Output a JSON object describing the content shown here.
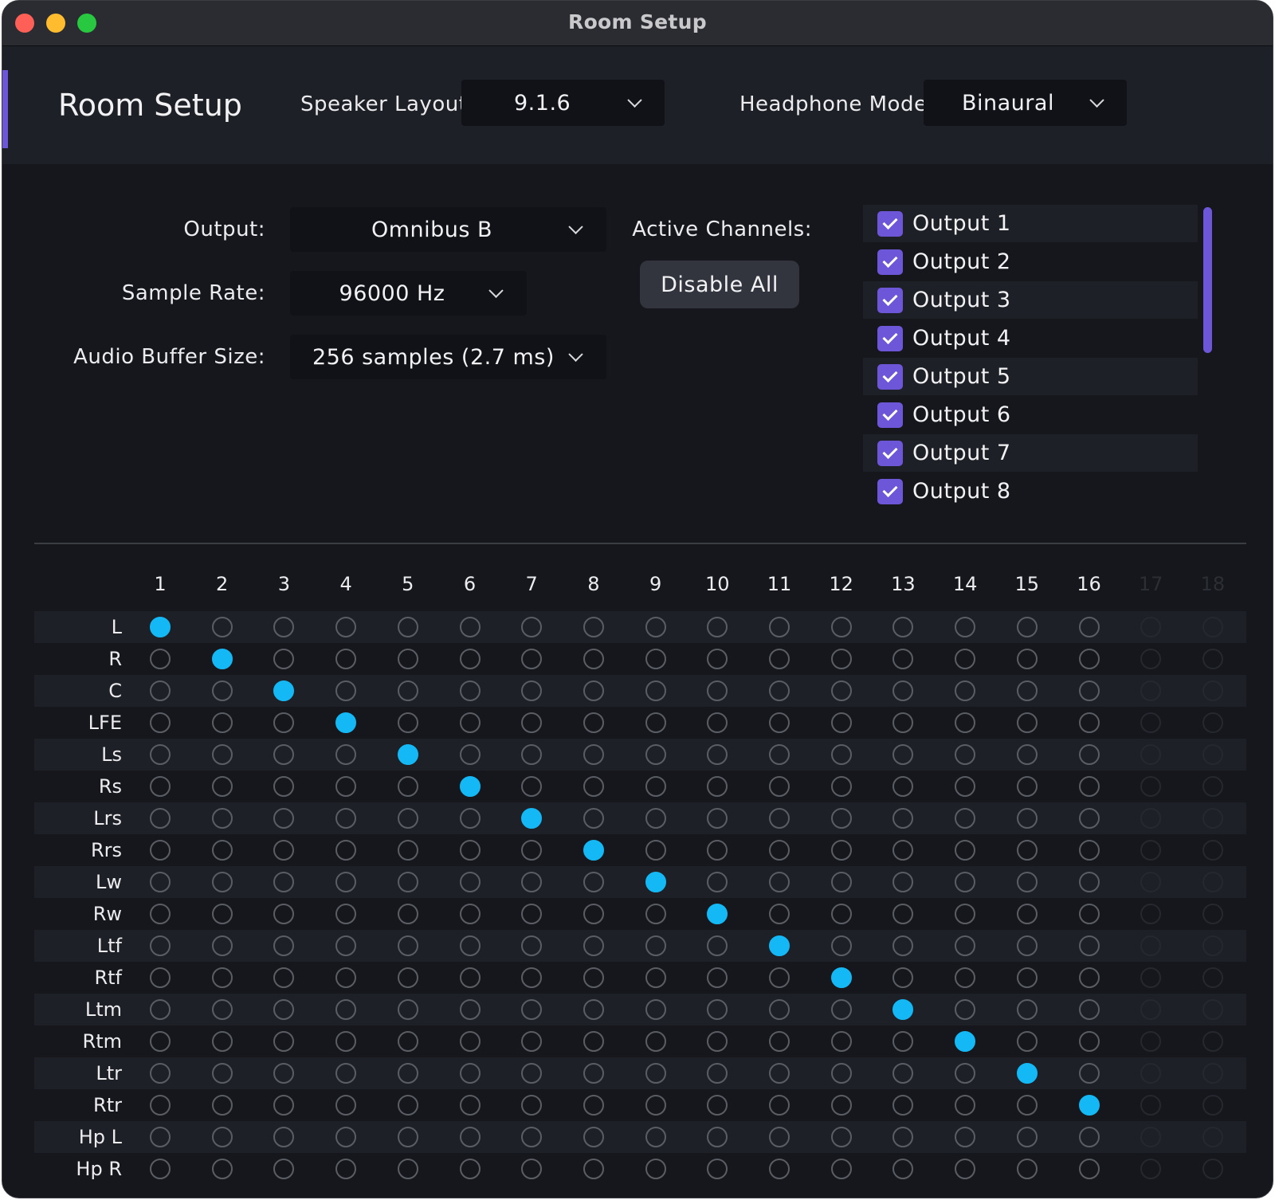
{
  "window": {
    "title": "Room Setup"
  },
  "header": {
    "title": "Room Setup",
    "speaker_layout_label": "Speaker Layout:",
    "speaker_layout_value": "9.1.6",
    "headphone_mode_label": "Headphone Mode:",
    "headphone_mode_value": "Binaural"
  },
  "settings": {
    "output_label": "Output:",
    "output_value": "Omnibus B",
    "sample_rate_label": "Sample Rate:",
    "sample_rate_value": "96000 Hz",
    "buffer_label": "Audio Buffer Size:",
    "buffer_value": "256 samples (2.7 ms)"
  },
  "channels": {
    "label": "Active Channels:",
    "disable_all_label": "Disable All",
    "items": [
      {
        "label": "Output 1",
        "checked": true
      },
      {
        "label": "Output 2",
        "checked": true
      },
      {
        "label": "Output 3",
        "checked": true
      },
      {
        "label": "Output 4",
        "checked": true
      },
      {
        "label": "Output 5",
        "checked": true
      },
      {
        "label": "Output 6",
        "checked": true
      },
      {
        "label": "Output 7",
        "checked": true
      },
      {
        "label": "Output 8",
        "checked": true
      }
    ]
  },
  "matrix": {
    "columns": [
      "1",
      "2",
      "3",
      "4",
      "5",
      "6",
      "7",
      "8",
      "9",
      "10",
      "11",
      "12",
      "13",
      "14",
      "15",
      "16",
      "17",
      "18"
    ],
    "active_columns": 16,
    "rows": [
      "L",
      "R",
      "C",
      "LFE",
      "Ls",
      "Rs",
      "Lrs",
      "Rrs",
      "Lw",
      "Rw",
      "Ltf",
      "Rtf",
      "Ltm",
      "Rtm",
      "Ltr",
      "Rtr",
      "Hp L",
      "Hp R"
    ],
    "assignments": [
      1,
      2,
      3,
      4,
      5,
      6,
      7,
      8,
      9,
      10,
      11,
      12,
      13,
      14,
      15,
      16,
      null,
      null
    ]
  },
  "colors": {
    "accent": "#6e56d8",
    "active_dot": "#14b8f5",
    "background": "#15171c"
  }
}
